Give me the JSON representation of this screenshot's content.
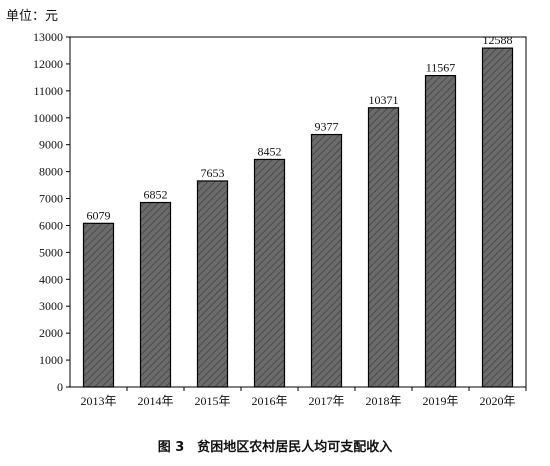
{
  "chart_data": {
    "type": "bar",
    "unit_label": "单位：元",
    "categories": [
      "2013年",
      "2014年",
      "2015年",
      "2016年",
      "2017年",
      "2018年",
      "2019年",
      "2020年"
    ],
    "values": [
      6079,
      6852,
      7653,
      8452,
      9377,
      10371,
      11567,
      12588
    ],
    "ylim": [
      0,
      13000
    ],
    "yticks": [
      0,
      1000,
      2000,
      3000,
      4000,
      5000,
      6000,
      7000,
      8000,
      9000,
      10000,
      11000,
      12000,
      13000
    ],
    "grid": false,
    "legend": "none",
    "bar_fill": "#6b6b6b",
    "bar_stroke": "#000000",
    "title": "图 3　贫困地区农村居民人均可支配收入"
  }
}
